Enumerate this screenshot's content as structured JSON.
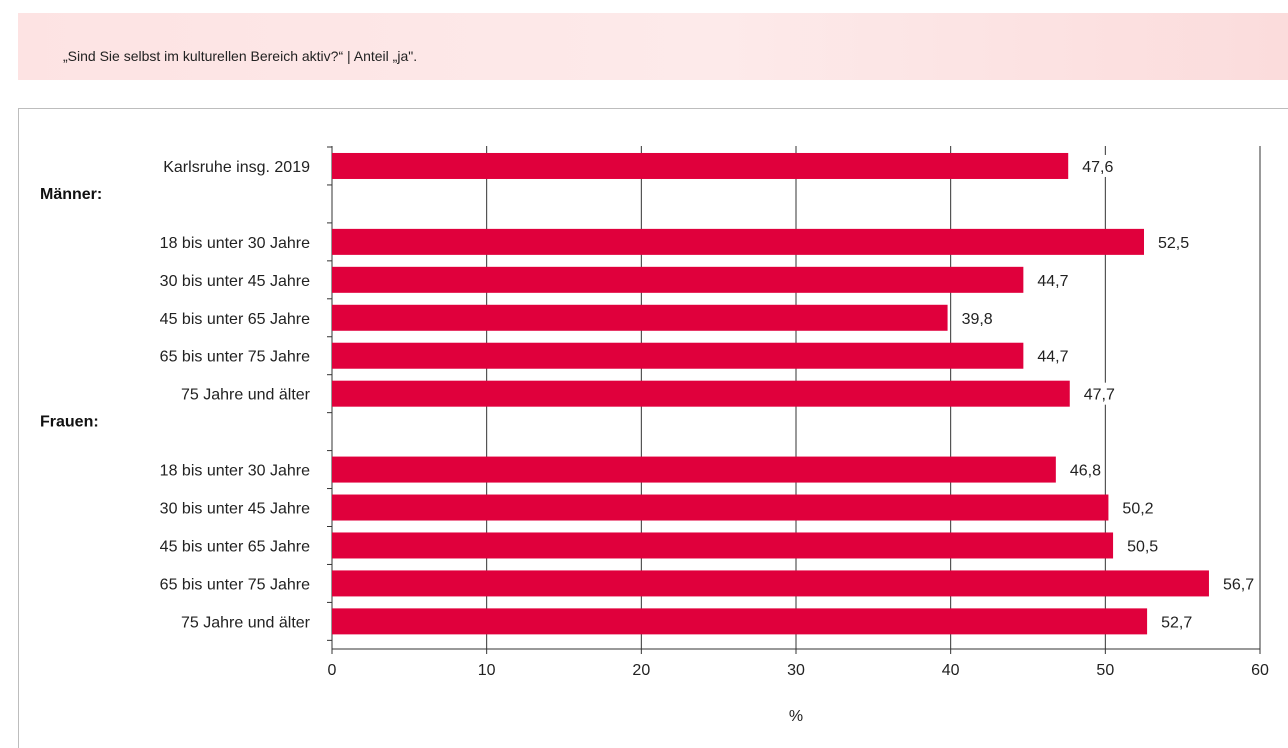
{
  "caption": "„Sind Sie selbst im kulturellen Bereich aktiv?“ | Anteil „ja\".",
  "colors": {
    "bar": "#e0003c",
    "grid": "#333333",
    "text": "#222222"
  },
  "chart_data": {
    "type": "bar",
    "orientation": "horizontal",
    "xlabel": "%",
    "xlim": [
      0,
      60
    ],
    "xticks": [
      0,
      10,
      20,
      30,
      40,
      50,
      60
    ],
    "xtick_labels": [
      "0",
      "10",
      "20",
      "30",
      "40",
      "50",
      "60"
    ],
    "grid": true,
    "rows": [
      {
        "kind": "bar",
        "label": "Karlsruhe insg. 2019",
        "value": 47.6,
        "value_label": "47,6"
      },
      {
        "kind": "group",
        "label": "Männer:"
      },
      {
        "kind": "bar",
        "label": "18 bis unter 30 Jahre",
        "value": 52.5,
        "value_label": "52,5"
      },
      {
        "kind": "bar",
        "label": "30 bis unter 45 Jahre",
        "value": 44.7,
        "value_label": "44,7"
      },
      {
        "kind": "bar",
        "label": "45 bis unter 65 Jahre",
        "value": 39.8,
        "value_label": "39,8"
      },
      {
        "kind": "bar",
        "label": "65 bis unter 75 Jahre",
        "value": 44.7,
        "value_label": "44,7"
      },
      {
        "kind": "bar",
        "label": "75 Jahre und älter",
        "value": 47.7,
        "value_label": "47,7"
      },
      {
        "kind": "group",
        "label": "Frauen:"
      },
      {
        "kind": "bar",
        "label": "18 bis unter 30 Jahre",
        "value": 46.8,
        "value_label": "46,8"
      },
      {
        "kind": "bar",
        "label": "30 bis unter 45 Jahre",
        "value": 50.2,
        "value_label": "50,2"
      },
      {
        "kind": "bar",
        "label": "45 bis unter 65 Jahre",
        "value": 50.5,
        "value_label": "50,5"
      },
      {
        "kind": "bar",
        "label": "65 bis unter 75 Jahre",
        "value": 56.7,
        "value_label": "56,7"
      },
      {
        "kind": "bar",
        "label": "75 Jahre und älter",
        "value": 52.7,
        "value_label": "52,7"
      }
    ]
  }
}
